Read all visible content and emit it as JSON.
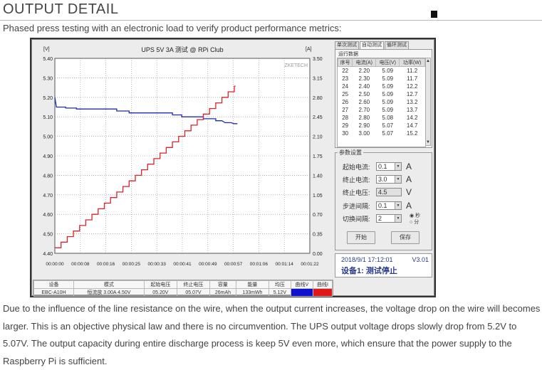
{
  "header": {
    "title": "OUTPUT DETAIL"
  },
  "intro": "Phased press testing with an electronic load to verify product performance metrics:",
  "chart_data": {
    "type": "line",
    "title": "UPS 5V 3A 测试 @ RPi Club",
    "watermark": "ZKETECH",
    "left_unit": "[V]",
    "right_unit": "[A]",
    "left_ylim": [
      4.4,
      5.4
    ],
    "right_ylim": [
      0.0,
      3.5
    ],
    "left_ticks": [
      "5.40",
      "5.30",
      "5.20",
      "5.10",
      "5.00",
      "4.90",
      "4.80",
      "4.70",
      "4.60",
      "4.50",
      "4.40"
    ],
    "right_ticks": [
      "3.50",
      "3.15",
      "2.80",
      "2.45",
      "2.10",
      "1.75",
      "1.40",
      "1.05",
      "0.70",
      "0.35",
      "0.00"
    ],
    "x_ticks": [
      "00:00:00",
      "00:00:08",
      "00:00:16",
      "00:00:25",
      "00:00:33",
      "00:00:41",
      "00:00:49",
      "00:00:57",
      "00:01:06",
      "00:01:14",
      "00:01:22"
    ],
    "xlim_s": [
      0,
      82.4
    ],
    "grid": true,
    "series": [
      {
        "color": "#1c2bb5",
        "axis": "left",
        "points": [
          [
            0,
            5.2
          ],
          [
            0.5,
            5.15
          ],
          [
            3.5,
            5.15
          ],
          [
            3.5,
            5.145
          ],
          [
            7,
            5.145
          ],
          [
            7,
            5.14
          ],
          [
            20,
            5.14
          ],
          [
            20,
            5.13
          ],
          [
            24,
            5.13
          ],
          [
            24,
            5.12
          ],
          [
            38,
            5.12
          ],
          [
            38,
            5.11
          ],
          [
            41,
            5.11
          ],
          [
            41,
            5.1
          ],
          [
            48,
            5.1
          ],
          [
            48,
            5.09
          ],
          [
            52,
            5.09
          ],
          [
            52,
            5.08
          ],
          [
            54,
            5.08
          ],
          [
            55,
            5.07
          ],
          [
            57,
            5.07
          ],
          [
            57.8,
            5.065
          ],
          [
            59,
            5.065
          ]
        ]
      },
      {
        "color": "#d9232a",
        "axis": "right",
        "step_interval_s": 2,
        "current_start": 0.1,
        "current_end": 3.0,
        "current_step": 0.1
      }
    ]
  },
  "tabs": [
    "单次测试",
    "自动测试",
    "循环测试"
  ],
  "run_table": {
    "title": "运行数据",
    "columns": [
      "序号",
      "电流(A)",
      "电压(V)",
      "功率(W)"
    ],
    "rows": [
      [
        "22",
        "2.20",
        "5.09",
        "11.2"
      ],
      [
        "23",
        "2.30",
        "5.09",
        "11.7"
      ],
      [
        "24",
        "2.40",
        "5.09",
        "12.2"
      ],
      [
        "25",
        "2.50",
        "5.09",
        "12.7"
      ],
      [
        "26",
        "2.60",
        "5.09",
        "13.2"
      ],
      [
        "27",
        "2.70",
        "5.09",
        "13.7"
      ],
      [
        "28",
        "2.80",
        "5.08",
        "14.2"
      ],
      [
        "29",
        "2.90",
        "5.07",
        "14.7"
      ],
      [
        "30",
        "3.00",
        "5.07",
        "15.2"
      ]
    ]
  },
  "params": {
    "title": "参数设置",
    "start_current": {
      "label": "起始电流:",
      "value": "0.1",
      "unit": "A"
    },
    "end_current": {
      "label": "终止电流:",
      "value": "3.0",
      "unit": "A"
    },
    "end_voltage": {
      "label": "终止电压:",
      "value": "4.5",
      "unit": "V"
    },
    "step_interval": {
      "label": "步进间隔:",
      "value": "0.1",
      "unit": "A"
    },
    "switch_interval": {
      "label": "切换间隔:",
      "value": "2"
    },
    "radio_sec": "秒",
    "radio_min": "分",
    "start_button": "开始",
    "save_button": "保存"
  },
  "status": {
    "time": "2018/9/1 17:12:01",
    "version": "V3.01",
    "device": "设备1: 测试停止"
  },
  "bottom": {
    "headers": [
      "设备",
      "模式",
      "起始电压",
      "终止电压",
      "容量",
      "能量",
      "均压",
      "曲线V",
      "曲线I"
    ],
    "values": [
      "EBC-A10H",
      "恒流放 3.00A 4.50V",
      "05.20V",
      "05.07V",
      "26mAh",
      "133mWh",
      "5.12V",
      "",
      ""
    ],
    "curve_v_color": "#1010d0",
    "curve_i_color": "#e01818"
  },
  "paragraph": "Due to the influence of the line resistance on the wire, when the output current increases, the voltage drop on the wire will becomes larger. This is an objective physical law and there is no circumvention. The UPS output voltage drops slowly drop from 5.2V to 5.07V. The output capacity during entire discharge process is keep 5V even more, which ensure that the power supply to the Raspberry Pi is sufficient."
}
